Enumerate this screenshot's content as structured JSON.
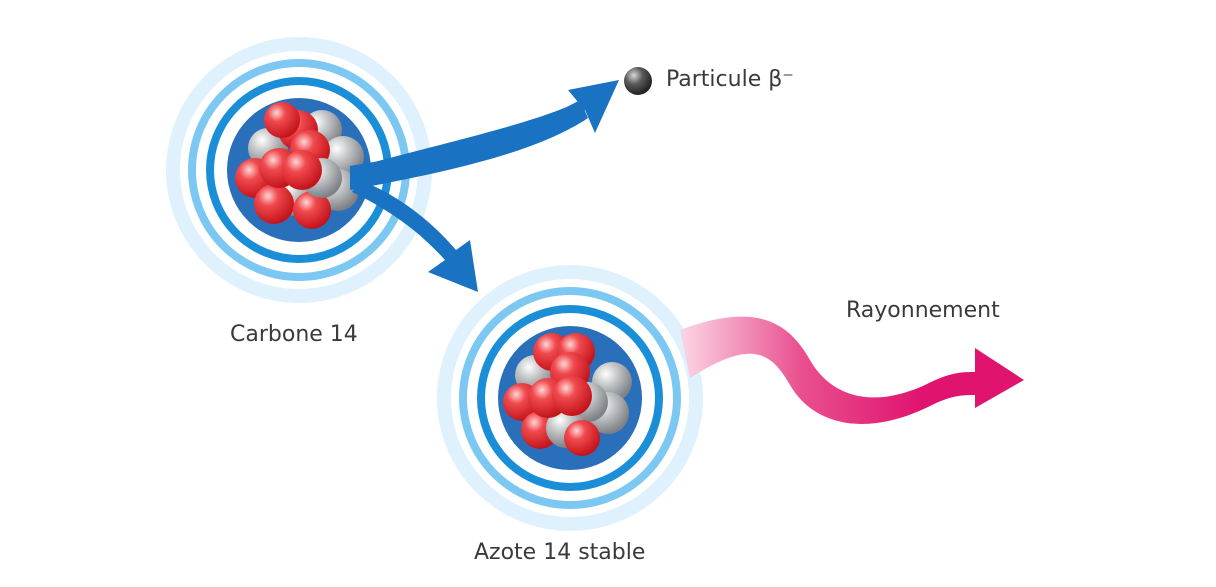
{
  "labels": {
    "carbon": "Carbone 14",
    "nitrogen": "Azote 14 stable",
    "particle": "Particule β⁻",
    "radiation": "Rayonnement"
  },
  "colors": {
    "arrow_blue": "#1a72c2",
    "ring_dark": "#1a8fd8",
    "ring_light": "#7cc8f2",
    "ring_faint": "#dff1fc",
    "nucleus_bg": "#2a6fba",
    "proton": "#e8262c",
    "neutron": "#a9abae",
    "radiation_pink": "#e0146f",
    "particle": "#4a4a4a",
    "text": "#3a3a3a"
  }
}
